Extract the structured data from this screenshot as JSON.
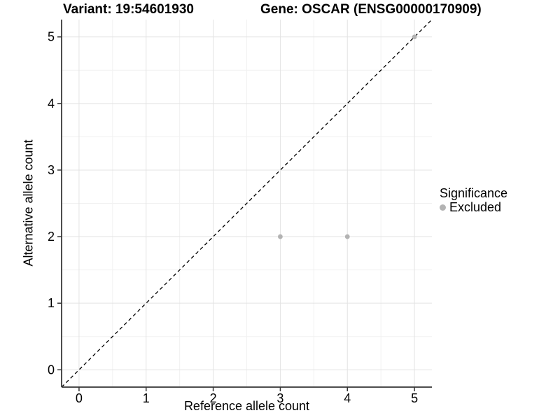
{
  "header": {
    "variant_title": "Variant: 19:54601930",
    "gene_title": "Gene: OSCAR (ENSG00000170909)"
  },
  "legend": {
    "title": "Significance",
    "items": [
      {
        "label": "Excluded",
        "color": "#b3b3b3"
      }
    ]
  },
  "chart_data": {
    "type": "scatter",
    "titles": [
      "Variant: 19:54601930",
      "Gene: OSCAR (ENSG00000170909)"
    ],
    "xlabel": "Reference allele count",
    "ylabel": "Alternative allele count",
    "xlim": [
      -0.26,
      5.26
    ],
    "ylim": [
      -0.26,
      5.26
    ],
    "xticks": [
      0,
      1,
      2,
      3,
      4,
      5
    ],
    "yticks": [
      0,
      1,
      2,
      3,
      4,
      5
    ],
    "grid": {
      "major": true,
      "minor": true,
      "minor_step": 0.5
    },
    "legend_position": "right",
    "series": [
      {
        "name": "Excluded",
        "color": "#b3b3b3",
        "points": [
          [
            3,
            2
          ],
          [
            4,
            2
          ],
          [
            5,
            5
          ]
        ]
      }
    ],
    "reference_line": {
      "slope": 1,
      "intercept": 0,
      "style": "dashed",
      "color": "#000000"
    }
  },
  "colors": {
    "grid_major": "#e3e3e3",
    "grid_minor": "#f1f1f1",
    "axis_line": "#4d4d4d",
    "tick_mark": "#333333",
    "tick_text": "#000000"
  }
}
